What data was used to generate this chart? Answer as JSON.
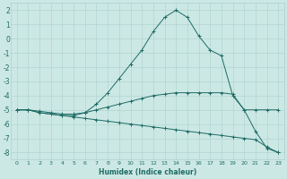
{
  "xlabel": "Humidex (Indice chaleur)",
  "background_color": "#cce8e4",
  "grid_color": "#aacfcc",
  "line_color": "#1e6b65",
  "xlim": [
    -0.5,
    23.5
  ],
  "ylim": [
    -8.5,
    2.5
  ],
  "xticks": [
    0,
    1,
    2,
    3,
    4,
    5,
    6,
    7,
    8,
    9,
    10,
    11,
    12,
    13,
    14,
    15,
    16,
    17,
    18,
    19,
    20,
    21,
    22,
    23
  ],
  "yticks": [
    -8,
    -7,
    -6,
    -5,
    -4,
    -3,
    -2,
    -1,
    0,
    1,
    2
  ],
  "series": [
    {
      "x": [
        0,
        1,
        2,
        3,
        4,
        5,
        6,
        7,
        8,
        9,
        10,
        11,
        12,
        13,
        14,
        15,
        16,
        17,
        18,
        19,
        20,
        21,
        22,
        23
      ],
      "y": [
        -5.0,
        -5.0,
        -5.2,
        -5.3,
        -5.4,
        -5.4,
        -5.2,
        -4.6,
        -3.8,
        -2.8,
        -1.8,
        -0.8,
        0.5,
        1.5,
        2.0,
        1.5,
        0.2,
        -0.8,
        -1.2,
        -4.0,
        -5.0,
        -6.5,
        -7.7,
        -8.0
      ]
    },
    {
      "x": [
        0,
        1,
        2,
        3,
        4,
        5,
        6,
        7,
        8,
        9,
        10,
        11,
        12,
        13,
        14,
        15,
        16,
        17,
        18,
        19,
        20,
        21,
        22,
        23
      ],
      "y": [
        -5.0,
        -5.0,
        -5.2,
        -5.3,
        -5.4,
        -5.5,
        -5.6,
        -5.7,
        -5.8,
        -5.9,
        -6.0,
        -6.1,
        -6.2,
        -6.3,
        -6.4,
        -6.5,
        -6.6,
        -6.7,
        -6.8,
        -6.9,
        -7.0,
        -7.1,
        -7.6,
        -8.0
      ]
    },
    {
      "x": [
        0,
        1,
        2,
        3,
        4,
        5,
        6,
        7,
        8,
        9,
        10,
        11,
        12,
        13,
        14,
        15,
        16,
        17,
        18,
        19,
        20,
        21,
        22,
        23
      ],
      "y": [
        -5.0,
        -5.0,
        -5.1,
        -5.2,
        -5.3,
        -5.3,
        -5.2,
        -5.0,
        -4.8,
        -4.6,
        -4.4,
        -4.2,
        -4.0,
        -3.9,
        -3.8,
        -3.8,
        -3.8,
        -3.8,
        -3.8,
        -3.9,
        -5.0,
        -5.0,
        -5.0,
        -5.0
      ]
    }
  ]
}
